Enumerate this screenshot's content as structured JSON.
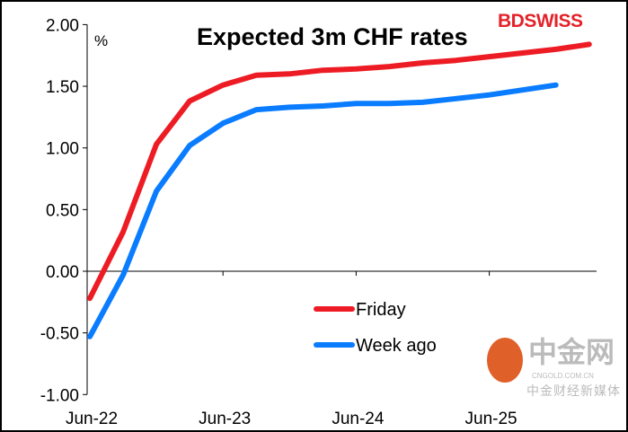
{
  "chart_data": {
    "type": "line",
    "title": "Expected 3m CHF rates",
    "ylabel": "%",
    "xlabel": "",
    "ylim": [
      -1.0,
      2.0
    ],
    "yticks": [
      "2.00",
      "1.50",
      "1.00",
      "0.50",
      "0.00",
      "-0.50",
      "-1.00"
    ],
    "ytick_values": [
      2,
      1.5,
      1,
      0.5,
      0,
      -0.5,
      -1
    ],
    "xticks": [
      "Jun-22",
      "Jun-23",
      "Jun-24",
      "Jun-25"
    ],
    "xtick_months": [
      0,
      12,
      24,
      36
    ],
    "x_months": [
      0,
      3,
      6,
      9,
      12,
      15,
      18,
      21,
      24,
      27,
      30,
      33,
      36,
      39,
      42,
      45
    ],
    "series": [
      {
        "name": "Friday",
        "color": "#ed1c24",
        "values": [
          -0.22,
          0.32,
          1.03,
          1.38,
          1.51,
          1.59,
          1.6,
          1.63,
          1.64,
          1.66,
          1.69,
          1.71,
          1.74,
          1.77,
          1.8,
          1.84
        ]
      },
      {
        "name": "Week ago",
        "color": "#0a7cff",
        "values": [
          -0.53,
          -0.03,
          0.65,
          1.02,
          1.2,
          1.31,
          1.33,
          1.34,
          1.36,
          1.36,
          1.37,
          1.4,
          1.43,
          1.47,
          1.51
        ]
      }
    ],
    "legend": "center-bottom",
    "grid": false
  },
  "logo": {
    "part1": "BD",
    "part2": "SWISS"
  },
  "watermark": {
    "name": "中金网",
    "site": "CNGOLD.COM.CN",
    "sub": "中金财经新媒体"
  }
}
